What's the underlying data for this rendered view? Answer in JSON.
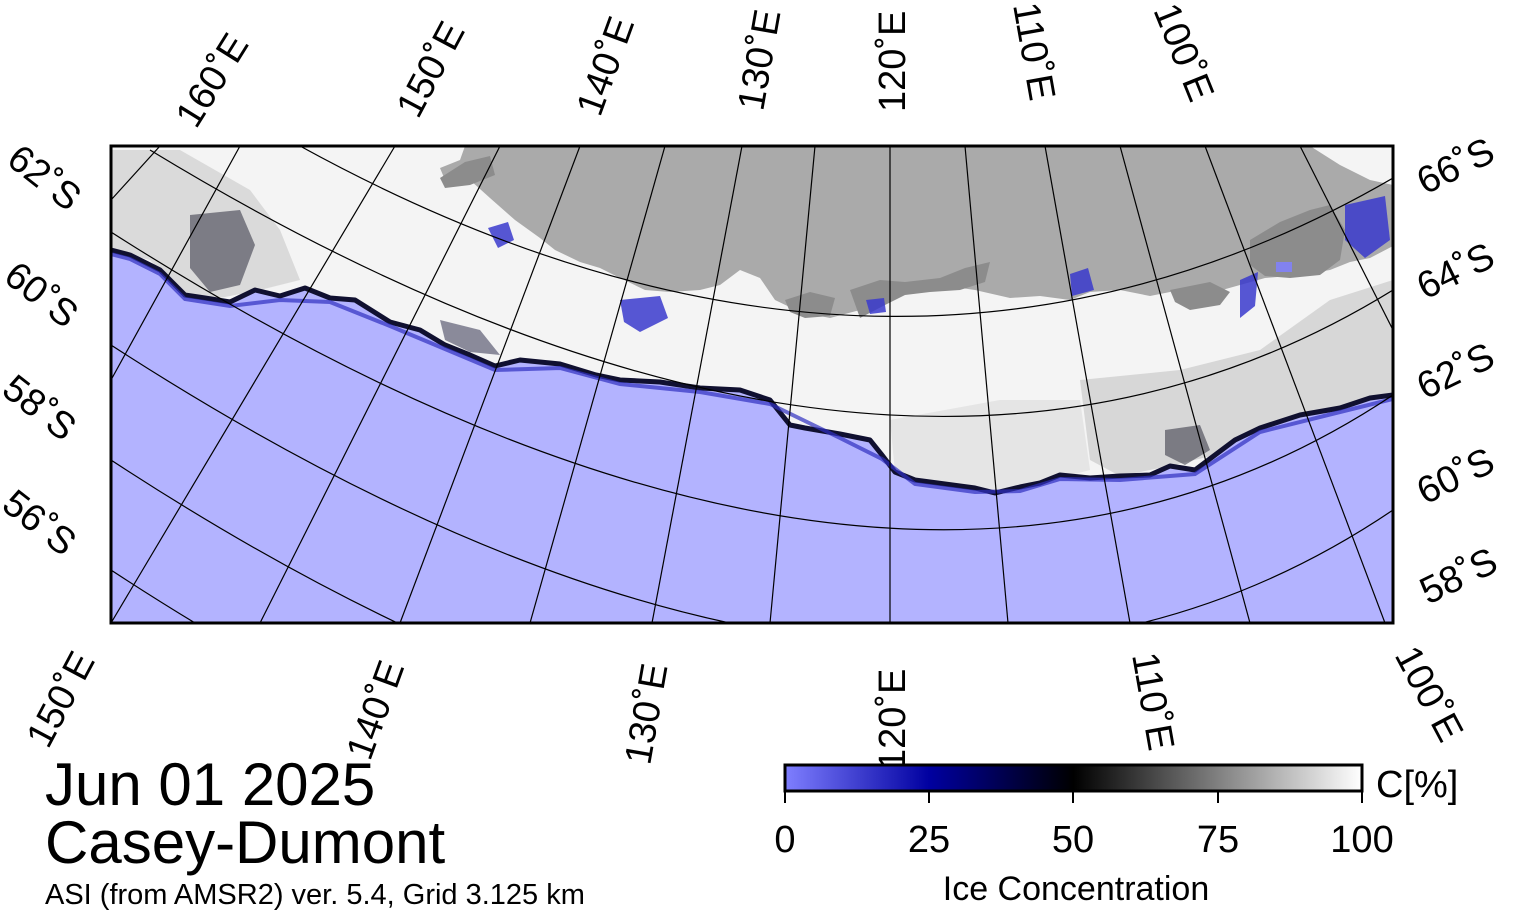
{
  "map": {
    "date": "Jun 01 2025",
    "region": "Casey-Dumont",
    "product": "ASI (from AMSR2) ver. 5.4,  Grid 3.125 km",
    "colors": {
      "open_water": "#b3b3ff",
      "land": "#aaaaaa",
      "land_shadow": "#8c8c8c",
      "ice_full": "#ffffff",
      "graticule": "#000000"
    },
    "top_longitude_labels": [
      "160˚E",
      "150˚E",
      "140˚E",
      "130˚E",
      "120˚E",
      "110˚E",
      "100˚E"
    ],
    "bottom_longitude_labels": [
      "150˚E",
      "140˚E",
      "130˚E",
      "120˚E",
      "110˚E",
      "100˚E"
    ],
    "left_latitude_labels": [
      "62˚S",
      "60˚S",
      "58˚S",
      "56˚S"
    ],
    "right_latitude_labels": [
      "66˚S",
      "64˚S",
      "62˚S",
      "60˚S",
      "58˚S"
    ]
  },
  "colorbar": {
    "unit": "C[%]",
    "title": "Ice Concentration",
    "ticks": [
      "0",
      "25",
      "50",
      "75",
      "100"
    ],
    "stops": [
      "#7f7fff",
      "#0000a0",
      "#000000",
      "#808080",
      "#ffffff"
    ]
  }
}
